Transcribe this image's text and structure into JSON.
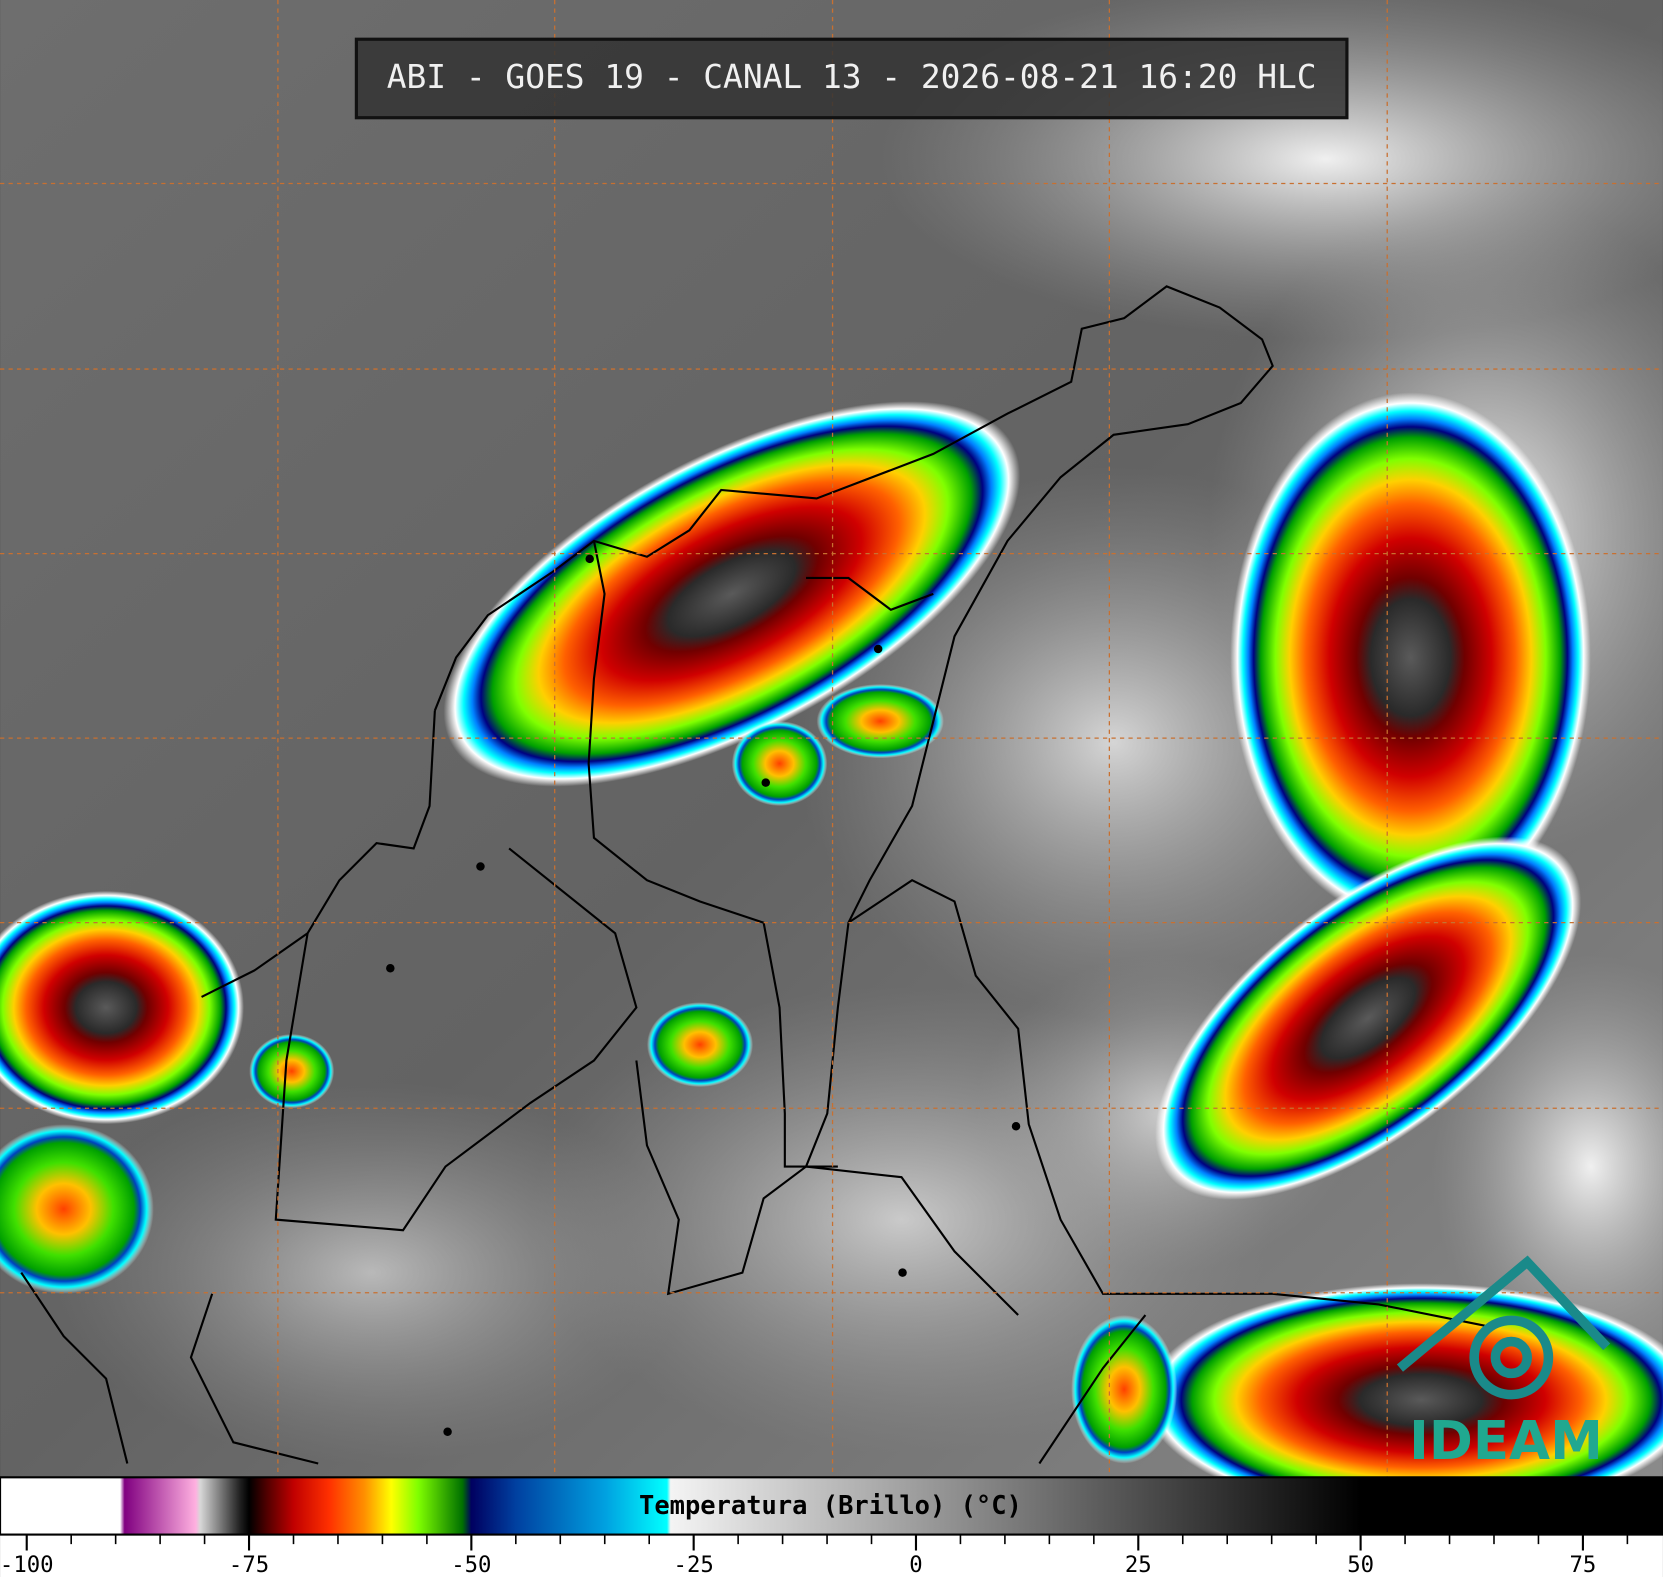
{
  "title": "ABI - GOES 19 - CANAL 13 - 2026-08-21 16:20 HLC",
  "logo": "IDEAM",
  "colorbar": {
    "label": "Temperatura (Brillo) (°C)",
    "xlim": [
      -103,
      84
    ],
    "xticks": [
      -100,
      -75,
      -50,
      -25,
      0,
      25,
      50,
      75
    ],
    "xminorticks": [
      -95,
      -90,
      -85,
      -80,
      -70,
      -65,
      -60,
      -55,
      -45,
      -40,
      -35,
      -30,
      -20,
      -15,
      -10,
      -5,
      5,
      10,
      15,
      20,
      30,
      35,
      40,
      45,
      55,
      60,
      65,
      70,
      80
    ],
    "colormap": [
      {
        "value": -103,
        "color": "#ffffff"
      },
      {
        "value": -89.5,
        "color": "#ffffff"
      },
      {
        "value": -89,
        "color": "#800080"
      },
      {
        "value": -81,
        "color": "#ffb0e0"
      },
      {
        "value": -80.5,
        "color": "#d8d8d8"
      },
      {
        "value": -76,
        "color": "#202020"
      },
      {
        "value": -75,
        "color": "#000000"
      },
      {
        "value": -73,
        "color": "#500000"
      },
      {
        "value": -70,
        "color": "#c00000"
      },
      {
        "value": -66,
        "color": "#ff3000"
      },
      {
        "value": -62,
        "color": "#ff9000"
      },
      {
        "value": -59,
        "color": "#ffff00"
      },
      {
        "value": -56,
        "color": "#80ff00"
      },
      {
        "value": -51,
        "color": "#007000"
      },
      {
        "value": -50,
        "color": "#000060"
      },
      {
        "value": -45,
        "color": "#0040a0"
      },
      {
        "value": -35,
        "color": "#00a0e0"
      },
      {
        "value": -28,
        "color": "#00ffff"
      },
      {
        "value": -27.6,
        "color": "#f4f4f4"
      },
      {
        "value": 50,
        "color": "#000000"
      },
      {
        "value": 84,
        "color": "#000000"
      }
    ]
  }
}
